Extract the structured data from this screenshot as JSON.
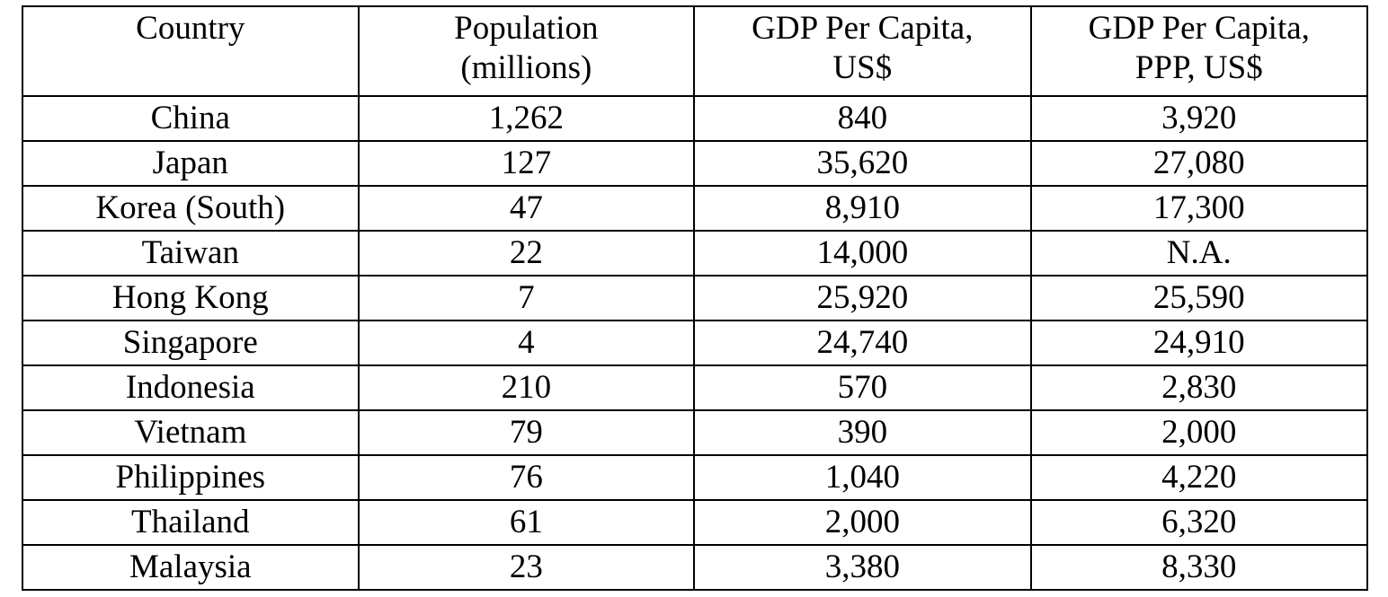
{
  "table": {
    "headers": [
      {
        "line1": "Country",
        "line2": ""
      },
      {
        "line1": "Population",
        "line2": "(millions)"
      },
      {
        "line1": "GDP Per Capita,",
        "line2": "US$"
      },
      {
        "line1": "GDP Per Capita,",
        "line2": "PPP, US$"
      }
    ],
    "rows": [
      {
        "country": "China",
        "population": "1,262",
        "gdp": "840",
        "gdp_ppp": "3,920"
      },
      {
        "country": "Japan",
        "population": "127",
        "gdp": "35,620",
        "gdp_ppp": "27,080"
      },
      {
        "country": "Korea (South)",
        "population": "47",
        "gdp": "8,910",
        "gdp_ppp": "17,300"
      },
      {
        "country": "Taiwan",
        "population": "22",
        "gdp": "14,000",
        "gdp_ppp": "N.A."
      },
      {
        "country": "Hong Kong",
        "population": "7",
        "gdp": "25,920",
        "gdp_ppp": "25,590"
      },
      {
        "country": "Singapore",
        "population": "4",
        "gdp": "24,740",
        "gdp_ppp": "24,910"
      },
      {
        "country": "Indonesia",
        "population": "210",
        "gdp": "570",
        "gdp_ppp": "2,830"
      },
      {
        "country": "Vietnam",
        "population": "79",
        "gdp": "390",
        "gdp_ppp": "2,000"
      },
      {
        "country": "Philippines",
        "population": "76",
        "gdp": "1,040",
        "gdp_ppp": "4,220"
      },
      {
        "country": "Thailand",
        "population": "61",
        "gdp": "2,000",
        "gdp_ppp": "6,320"
      },
      {
        "country": "Malaysia",
        "population": "23",
        "gdp": "3,380",
        "gdp_ppp": "8,330"
      }
    ]
  }
}
